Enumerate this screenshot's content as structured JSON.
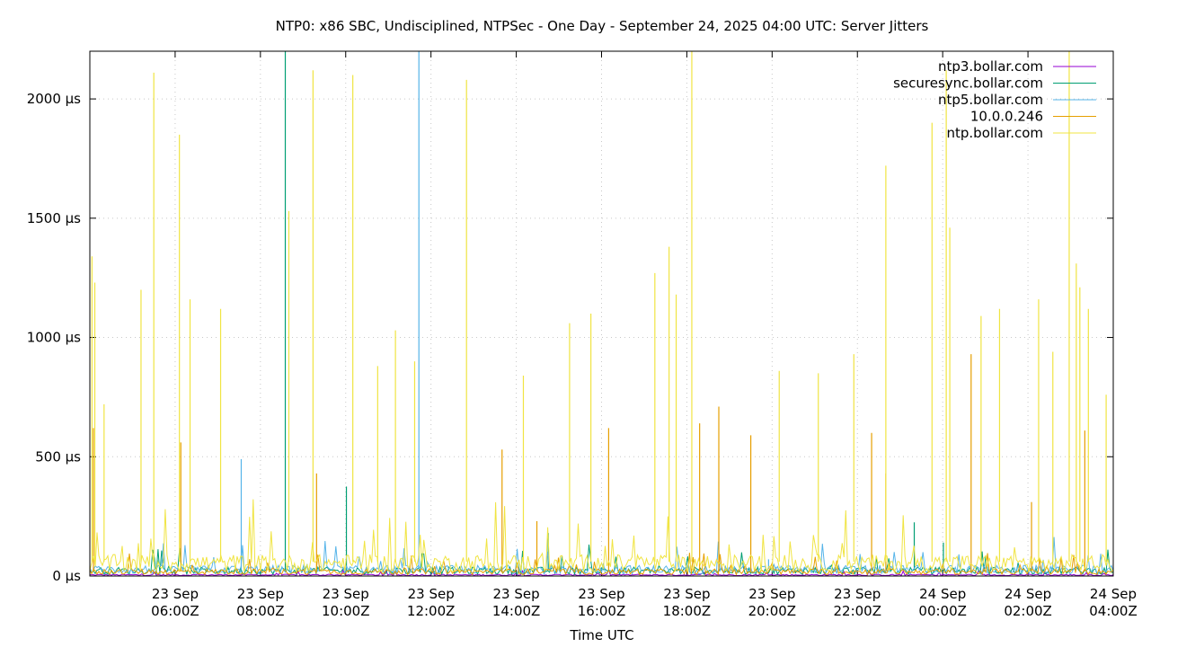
{
  "chart_data": {
    "type": "line",
    "title": "NTP0: x86 SBC, Undisciplined, NTPSec - One Day - September 24, 2025 04:00 UTC: Server Jitters",
    "xlabel": "Time UTC",
    "ylabel": "",
    "y_unit": "µs",
    "x_range": [
      "2025-09-23T04:00Z",
      "2025-09-24T04:00Z"
    ],
    "ylim": [
      0,
      2200
    ],
    "y_ticks": [
      {
        "value": 0,
        "label": "0 µs"
      },
      {
        "value": 500,
        "label": "500 µs"
      },
      {
        "value": 1000,
        "label": "1000 µs"
      },
      {
        "value": 1500,
        "label": "1500 µs"
      },
      {
        "value": 2000,
        "label": "2000 µs"
      }
    ],
    "x_ticks": [
      {
        "time": "2025-09-23T06:00Z",
        "line1": "23 Sep",
        "line2": "06:00Z"
      },
      {
        "time": "2025-09-23T08:00Z",
        "line1": "23 Sep",
        "line2": "08:00Z"
      },
      {
        "time": "2025-09-23T10:00Z",
        "line1": "23 Sep",
        "line2": "10:00Z"
      },
      {
        "time": "2025-09-23T12:00Z",
        "line1": "23 Sep",
        "line2": "12:00Z"
      },
      {
        "time": "2025-09-23T14:00Z",
        "line1": "23 Sep",
        "line2": "14:00Z"
      },
      {
        "time": "2025-09-23T16:00Z",
        "line1": "23 Sep",
        "line2": "16:00Z"
      },
      {
        "time": "2025-09-23T18:00Z",
        "line1": "23 Sep",
        "line2": "18:00Z"
      },
      {
        "time": "2025-09-23T20:00Z",
        "line1": "23 Sep",
        "line2": "20:00Z"
      },
      {
        "time": "2025-09-23T22:00Z",
        "line1": "23 Sep",
        "line2": "22:00Z"
      },
      {
        "time": "2025-09-24T00:00Z",
        "line1": "24 Sep",
        "line2": "00:00Z"
      },
      {
        "time": "2025-09-24T02:00Z",
        "line1": "24 Sep",
        "line2": "02:00Z"
      },
      {
        "time": "2025-09-24T04:00Z",
        "line1": "24 Sep",
        "line2": "04:00Z"
      }
    ],
    "grid": true,
    "legend_position": "top-right",
    "series": [
      {
        "name": "ntp3.bollar.com",
        "color": "#9400d3",
        "baseline": 5,
        "spikes": []
      },
      {
        "name": "securesync.bollar.com",
        "color": "#009e73",
        "baseline": 25,
        "spikes": [
          [
            "2025-09-23T08:35Z",
            2200
          ],
          [
            "2025-09-23T10:01Z",
            375
          ],
          [
            "2025-09-23T14:45Z",
            180
          ],
          [
            "2025-09-23T23:20Z",
            225
          ],
          [
            "2025-09-24T00:01Z",
            140
          ]
        ]
      },
      {
        "name": "ntp5.bollar.com",
        "color": "#56b4e9",
        "baseline": 30,
        "spikes": [
          [
            "2025-09-23T07:33Z",
            490
          ],
          [
            "2025-09-23T11:43Z",
            2200
          ],
          [
            "2025-09-23T19:55Z",
            70
          ]
        ]
      },
      {
        "name": "10.0.0.246",
        "color": "#e69f00",
        "baseline": 20,
        "spikes": [
          [
            "2025-09-23T04:05Z",
            620
          ],
          [
            "2025-09-23T06:08Z",
            560
          ],
          [
            "2025-09-23T09:19Z",
            430
          ],
          [
            "2025-09-23T13:40Z",
            530
          ],
          [
            "2025-09-23T14:29Z",
            230
          ],
          [
            "2025-09-23T16:10Z",
            620
          ],
          [
            "2025-09-23T18:18Z",
            640
          ],
          [
            "2025-09-23T18:45Z",
            710
          ],
          [
            "2025-09-23T19:30Z",
            590
          ],
          [
            "2025-09-23T22:20Z",
            600
          ],
          [
            "2025-09-23T22:40Z",
            430
          ],
          [
            "2025-09-24T00:40Z",
            930
          ],
          [
            "2025-09-24T02:05Z",
            310
          ],
          [
            "2025-09-24T03:20Z",
            610
          ]
        ]
      },
      {
        "name": "ntp.bollar.com",
        "color": "#f0e442",
        "baseline": 60,
        "spikes": [
          [
            "2025-09-23T04:03Z",
            1340
          ],
          [
            "2025-09-23T04:07Z",
            1230
          ],
          [
            "2025-09-23T04:20Z",
            720
          ],
          [
            "2025-09-23T05:12Z",
            1200
          ],
          [
            "2025-09-23T05:30Z",
            2110
          ],
          [
            "2025-09-23T06:06Z",
            1850
          ],
          [
            "2025-09-23T06:21Z",
            1160
          ],
          [
            "2025-09-23T07:04Z",
            1120
          ],
          [
            "2025-09-23T08:40Z",
            1530
          ],
          [
            "2025-09-23T09:14Z",
            2120
          ],
          [
            "2025-09-23T10:10Z",
            2100
          ],
          [
            "2025-09-23T10:45Z",
            880
          ],
          [
            "2025-09-23T11:10Z",
            1030
          ],
          [
            "2025-09-23T11:37Z",
            900
          ],
          [
            "2025-09-23T12:50Z",
            2080
          ],
          [
            "2025-09-23T14:10Z",
            840
          ],
          [
            "2025-09-23T15:15Z",
            1060
          ],
          [
            "2025-09-23T15:45Z",
            1100
          ],
          [
            "2025-09-23T17:15Z",
            1270
          ],
          [
            "2025-09-23T17:35Z",
            1380
          ],
          [
            "2025-09-23T17:45Z",
            1180
          ],
          [
            "2025-09-23T18:07Z",
            2200
          ],
          [
            "2025-09-23T20:10Z",
            860
          ],
          [
            "2025-09-23T21:05Z",
            850
          ],
          [
            "2025-09-23T21:55Z",
            930
          ],
          [
            "2025-09-23T22:40Z",
            1720
          ],
          [
            "2025-09-23T23:45Z",
            1900
          ],
          [
            "2025-09-24T00:05Z",
            2120
          ],
          [
            "2025-09-24T00:10Z",
            1460
          ],
          [
            "2025-09-24T00:54Z",
            1090
          ],
          [
            "2025-09-24T01:20Z",
            1120
          ],
          [
            "2025-09-24T02:15Z",
            1160
          ],
          [
            "2025-09-24T02:35Z",
            940
          ],
          [
            "2025-09-24T02:58Z",
            2200
          ],
          [
            "2025-09-24T03:08Z",
            1310
          ],
          [
            "2025-09-24T03:13Z",
            1210
          ],
          [
            "2025-09-24T03:25Z",
            1120
          ],
          [
            "2025-09-24T03:50Z",
            760
          ]
        ]
      }
    ]
  }
}
